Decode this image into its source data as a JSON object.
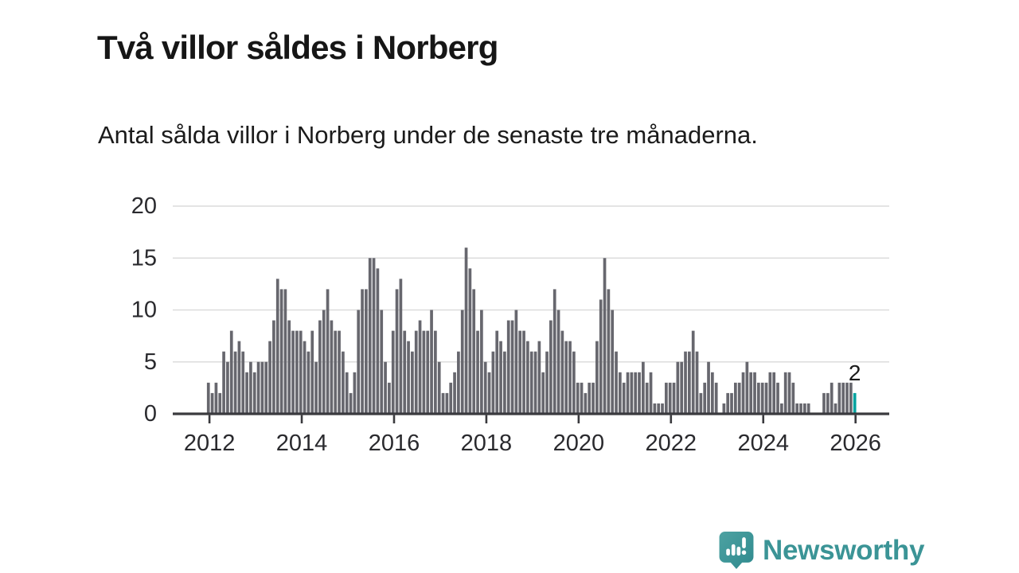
{
  "header": {
    "title": "Två villor såldes i Norberg",
    "subtitle": "Antal sålda villor i Norberg under de senaste tre månaderna."
  },
  "chart_data": {
    "type": "bar",
    "title": "Två villor såldes i Norberg",
    "subtitle": "Antal sålda villor i Norberg under de senaste tre månaderna.",
    "xlabel": "",
    "ylabel": "",
    "ylim": [
      0,
      20
    ],
    "y_ticks": [
      0,
      5,
      10,
      15,
      20
    ],
    "x_tick_labels": [
      "2012",
      "2014",
      "2016",
      "2018",
      "2020",
      "2022",
      "2024",
      "2026"
    ],
    "start_year": 2012,
    "bar_interval": "monthly (rolling 3-month sum)",
    "grid": "horizontal",
    "legend": "none",
    "bar_color": "#67676e",
    "highlight_color": "#00a39f",
    "highlight_index": 168,
    "highlight_label": "2",
    "series": [
      {
        "name": "Antal sålda villor",
        "values": [
          3,
          2,
          3,
          2,
          6,
          5,
          8,
          6,
          7,
          6,
          4,
          5,
          4,
          5,
          5,
          5,
          7,
          9,
          13,
          12,
          12,
          9,
          8,
          8,
          8,
          7,
          6,
          8,
          5,
          9,
          10,
          12,
          9,
          8,
          8,
          6,
          4,
          2,
          4,
          10,
          12,
          12,
          15,
          15,
          14,
          10,
          5,
          3,
          8,
          12,
          13,
          8,
          7,
          6,
          8,
          9,
          8,
          8,
          10,
          8,
          5,
          2,
          2,
          3,
          4,
          6,
          10,
          16,
          14,
          12,
          8,
          10,
          5,
          4,
          6,
          8,
          7,
          6,
          9,
          9,
          10,
          8,
          8,
          7,
          6,
          6,
          7,
          4,
          6,
          9,
          12,
          10,
          8,
          7,
          7,
          6,
          3,
          3,
          2,
          3,
          3,
          7,
          11,
          15,
          12,
          10,
          6,
          4,
          3,
          4,
          4,
          4,
          4,
          5,
          3,
          4,
          1,
          1,
          1,
          3,
          3,
          3,
          5,
          5,
          6,
          6,
          8,
          6,
          2,
          3,
          5,
          4,
          3,
          0,
          1,
          2,
          2,
          3,
          3,
          4,
          5,
          4,
          4,
          3,
          3,
          3,
          4,
          4,
          3,
          1,
          4,
          4,
          3,
          1,
          1,
          1,
          1,
          0,
          0,
          0,
          2,
          2,
          3,
          1,
          3,
          3,
          3,
          3,
          2
        ]
      }
    ]
  },
  "footer": {
    "brand": "Newsworthy",
    "brand_color": "#3b9496",
    "logo_icon": "speech-bubble-bar-chart-icon"
  },
  "colors": {
    "background": "#ffffff",
    "grid_line": "#dcdcdc",
    "axis_line": "#3a3a3e",
    "axis_text": "#2a2a2e",
    "bar": "#67676e",
    "highlight": "#00a39f"
  }
}
